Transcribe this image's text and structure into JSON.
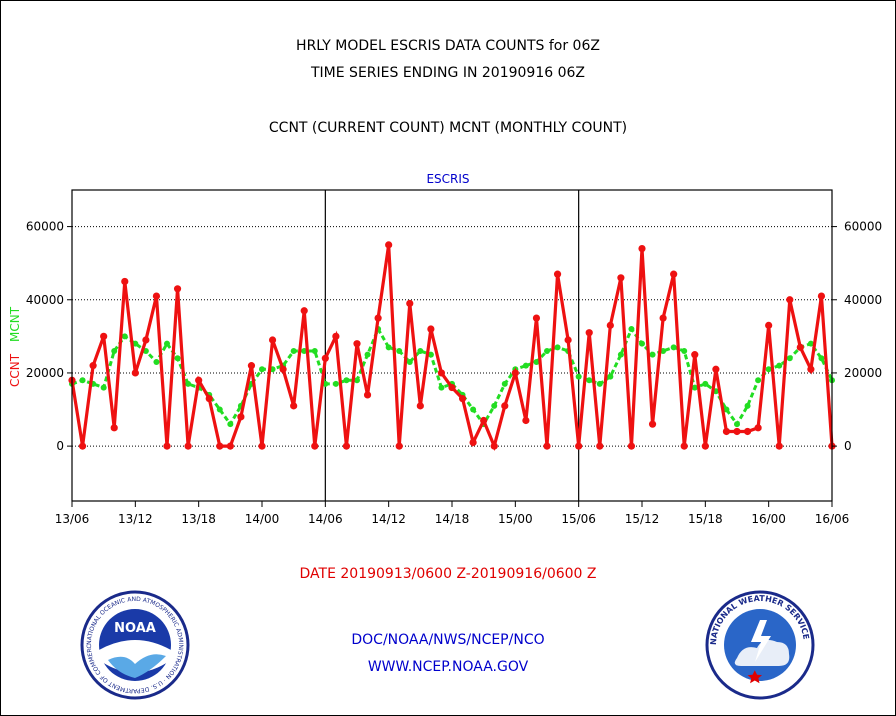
{
  "title_line1": "HRLY MODEL ESCRIS DATA COUNTS for 06Z",
  "title_line2": "TIME SERIES ENDING IN 20190916 06Z",
  "subtitle": "CCNT (CURRENT COUNT) MCNT (MONTHLY COUNT)",
  "date_range": "DATE 20190913/0600 Z-20190916/0600 Z",
  "footer_line1": "DOC/NOAA/NWS/NCEP/NCO",
  "footer_line2": "WWW.NCEP.NOAA.GOV",
  "logos": {
    "left_text": "NOAA",
    "left_ring_text": "NATIONAL OCEANIC AND ATMOSPHERIC ADMINISTRATION · U.S. DEPARTMENT OF COMMERCE",
    "right_ring_text": "NATIONAL WEATHER SERVICE"
  },
  "colors": {
    "ccnt": "#ee1111",
    "mcnt": "#22dd22",
    "title_blue": "#0000cc",
    "date_red": "#e00000"
  },
  "chart_data": {
    "type": "line",
    "title": "ESCRIS",
    "ylabel_ccnt": "CCNT",
    "ylabel_mcnt": "MCNT",
    "ylim": [
      -15000,
      70000
    ],
    "yticks": [
      0,
      20000,
      40000,
      60000
    ],
    "ytick_labels": [
      "0",
      "20000",
      "40000",
      "60000"
    ],
    "xlim": [
      0,
      72
    ],
    "xtick_hours": [
      0,
      6,
      12,
      18,
      24,
      30,
      36,
      42,
      48,
      54,
      60,
      66,
      72
    ],
    "xtick_labels": [
      "13/06",
      "13/12",
      "13/18",
      "14/00",
      "14/06",
      "14/12",
      "14/18",
      "15/00",
      "15/06",
      "15/12",
      "15/18",
      "16/00",
      "16/06"
    ],
    "day_divisions": [
      24,
      48
    ],
    "grid": true,
    "series": [
      {
        "name": "CCNT",
        "values": [
          18000,
          0,
          22000,
          30000,
          5000,
          45000,
          20000,
          29000,
          41000,
          0,
          43000,
          0,
          18000,
          13000,
          0,
          0,
          8000,
          22000,
          0,
          29000,
          21000,
          11000,
          37000,
          0,
          24000,
          30000,
          0,
          28000,
          14000,
          35000,
          55000,
          0,
          39000,
          11000,
          32000,
          20000,
          16000,
          13000,
          1000,
          7000,
          0,
          11000,
          20000,
          7000,
          35000,
          0,
          47000,
          29000,
          0,
          31000,
          0,
          33000,
          46000,
          0,
          54000,
          6000,
          35000,
          47000,
          0,
          25000,
          0,
          21000,
          4000,
          4000,
          4000,
          5000,
          33000,
          0,
          40000,
          27000,
          21000,
          41000,
          0
        ]
      },
      {
        "name": "MCNT",
        "values": [
          17000,
          18000,
          17000,
          16000,
          26000,
          30000,
          28000,
          26000,
          23000,
          28000,
          24000,
          17000,
          16000,
          14000,
          10000,
          6000,
          11000,
          17000,
          21000,
          21000,
          22000,
          26000,
          26000,
          26000,
          17000,
          17000,
          18000,
          18000,
          25000,
          32000,
          27000,
          26000,
          23000,
          26000,
          25000,
          16000,
          17000,
          14000,
          10000,
          6000,
          11000,
          17000,
          21000,
          22000,
          23000,
          26000,
          27000,
          26000,
          19000,
          18000,
          17000,
          19000,
          25000,
          32000,
          28000,
          25000,
          26000,
          27000,
          26000,
          16000,
          17000,
          15000,
          10000,
          6000,
          11000,
          18000,
          21000,
          22000,
          24000,
          27000,
          28000,
          24000,
          18000
        ]
      }
    ]
  }
}
